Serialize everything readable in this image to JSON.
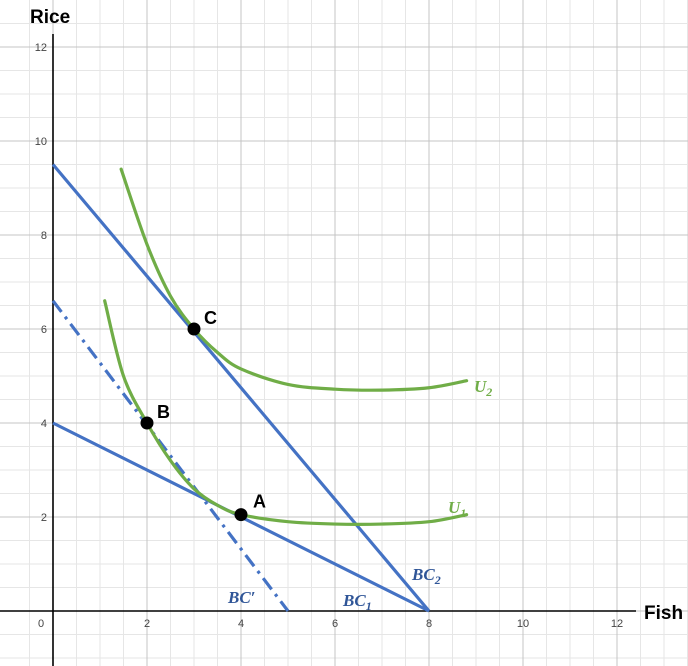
{
  "chart_data": {
    "type": "line",
    "xlabel": "Fish",
    "ylabel": "Rice",
    "xlim": [
      -0.5,
      13.5
    ],
    "ylim": [
      -1,
      12.7
    ],
    "xticks": [
      0,
      2,
      4,
      6,
      8,
      10,
      12
    ],
    "yticks": [
      2,
      4,
      6,
      8,
      10,
      12
    ],
    "grid": true,
    "colors": {
      "budget": "#4472C4",
      "utility": "#70AD47",
      "budget_label": "#2F5597",
      "point": "#000000"
    },
    "budget_lines": [
      {
        "label": "BC",
        "sub": "1",
        "style": "solid",
        "points": [
          [
            0,
            4
          ],
          [
            8,
            0
          ]
        ]
      },
      {
        "label": "BC",
        "sub": "2",
        "style": "solid",
        "points": [
          [
            0,
            9.5
          ],
          [
            8,
            0
          ]
        ]
      },
      {
        "label": "BC′",
        "sub": "",
        "style": "dash-dot",
        "points": [
          [
            0,
            6.6
          ],
          [
            5,
            0
          ]
        ]
      }
    ],
    "utility_curves": [
      {
        "label": "U",
        "sub": "1",
        "points": [
          [
            1.1,
            6.6
          ],
          [
            1.5,
            5.0
          ],
          [
            2.0,
            4.0
          ],
          [
            2.5,
            3.2
          ],
          [
            3.0,
            2.6
          ],
          [
            3.5,
            2.25
          ],
          [
            4.0,
            2.05
          ],
          [
            5.0,
            1.9
          ],
          [
            6.0,
            1.85
          ],
          [
            7.0,
            1.85
          ],
          [
            8.0,
            1.9
          ],
          [
            8.8,
            2.05
          ]
        ]
      },
      {
        "label": "U",
        "sub": "2",
        "points": [
          [
            1.45,
            9.4
          ],
          [
            2.0,
            7.8
          ],
          [
            2.5,
            6.7
          ],
          [
            3.0,
            6.0
          ],
          [
            3.5,
            5.5
          ],
          [
            4.0,
            5.15
          ],
          [
            5.0,
            4.82
          ],
          [
            6.0,
            4.72
          ],
          [
            7.0,
            4.7
          ],
          [
            8.0,
            4.75
          ],
          [
            8.8,
            4.9
          ]
        ]
      }
    ],
    "points": [
      {
        "label": "A",
        "x": 4,
        "y": 2.05
      },
      {
        "label": "B",
        "x": 2,
        "y": 4
      },
      {
        "label": "C",
        "x": 3,
        "y": 6
      }
    ]
  }
}
